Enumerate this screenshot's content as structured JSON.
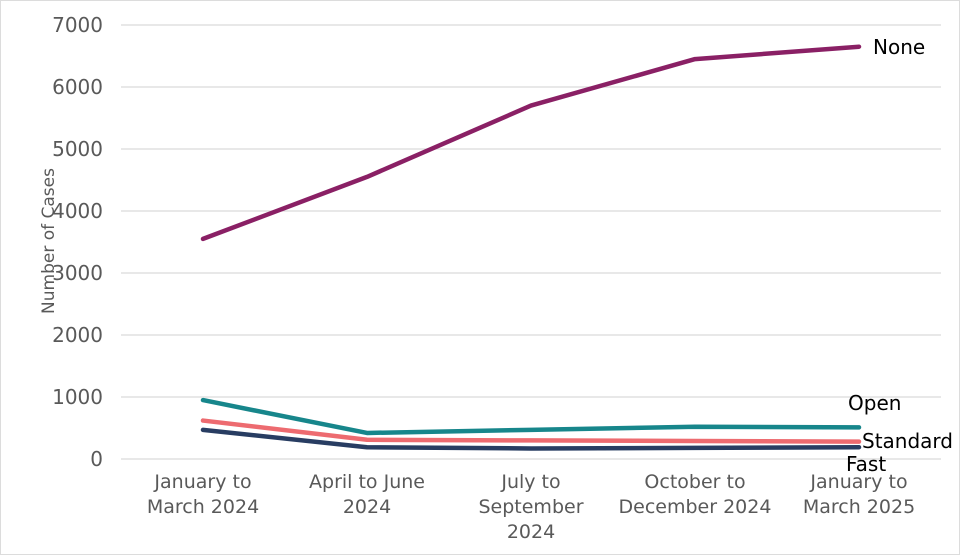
{
  "chart_data": {
    "type": "line",
    "title": "",
    "ylabel": "Number of Cases",
    "xlabel": "",
    "ylim": [
      0,
      7000
    ],
    "yticks": [
      0,
      1000,
      2000,
      3000,
      4000,
      5000,
      6000,
      7000
    ],
    "grid": true,
    "legend_position": "labels-at-line-ends",
    "categories": [
      "January to March 2024",
      "April to June 2024",
      "July to September 2024",
      "October to December 2024",
      "January to March 2025"
    ],
    "category_label_lines": [
      [
        "January to",
        "March 2024"
      ],
      [
        "April to June",
        "2024"
      ],
      [
        "July to",
        "September",
        "2024"
      ],
      [
        "October to",
        "December 2024"
      ],
      [
        "January to",
        "March 2025"
      ]
    ],
    "series": [
      {
        "name": "None",
        "color": "#8A2065",
        "values": [
          3550,
          4550,
          5700,
          6450,
          6650
        ]
      },
      {
        "name": "Open",
        "color": "#17868B",
        "values": [
          950,
          420,
          470,
          520,
          510
        ]
      },
      {
        "name": "Standard",
        "color": "#ED6B70",
        "values": [
          620,
          310,
          300,
          290,
          280
        ]
      },
      {
        "name": "Fast",
        "color": "#283D62",
        "values": [
          470,
          190,
          170,
          180,
          190
        ]
      }
    ]
  },
  "colors": {
    "background": "#FFFFFF",
    "gridline": "#D9D9D9",
    "axis_text": "#595959",
    "series_label_text": "#000000",
    "frame_border": "#DCDCDC"
  }
}
